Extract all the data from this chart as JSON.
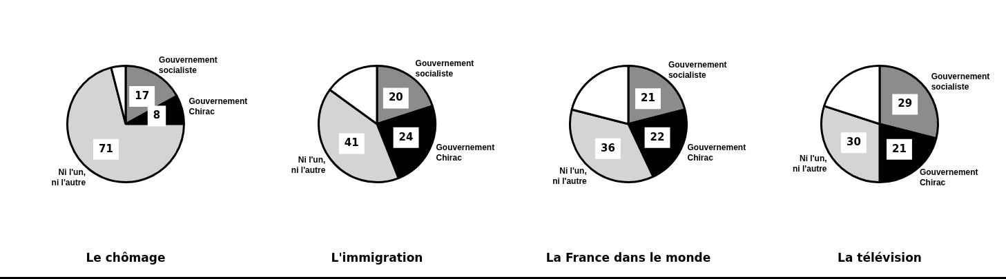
{
  "chart_data": [
    {
      "type": "pie",
      "title": "Le chômage",
      "categories": [
        "Gouvernement socialiste",
        "Gouvernement Chirac",
        "Ni l'un, ni l'autre",
        null
      ],
      "values": [
        17,
        8,
        71,
        4
      ],
      "colors": [
        "#8c8c8c",
        "#000000",
        "#d4d4d4",
        "#ffffff"
      ],
      "value_labels": [
        "17",
        "8",
        "71",
        null
      ]
    },
    {
      "type": "pie",
      "title": "L'immigration",
      "categories": [
        "Gouvernement socialiste",
        "Gouvernement Chirac",
        "Ni l'un, ni l'autre",
        null
      ],
      "values": [
        20,
        24,
        41,
        15
      ],
      "colors": [
        "#8c8c8c",
        "#000000",
        "#d4d4d4",
        "#ffffff"
      ],
      "value_labels": [
        "20",
        "24",
        "41",
        null
      ]
    },
    {
      "type": "pie",
      "title": "La France dans le monde",
      "categories": [
        "Gouvernement socialiste",
        "Gouvernement Chirac",
        "Ni l'un, ni l'autre",
        null
      ],
      "values": [
        21,
        22,
        36,
        21
      ],
      "colors": [
        "#8c8c8c",
        "#000000",
        "#d4d4d4",
        "#ffffff"
      ],
      "value_labels": [
        "21",
        "22",
        "36",
        null
      ]
    },
    {
      "type": "pie",
      "title": "La télévision",
      "categories": [
        "Gouvernement socialiste",
        "Gouvernement Chirac",
        "Ni l'un, ni l'autre",
        null
      ],
      "values": [
        29,
        21,
        30,
        20
      ],
      "colors": [
        "#8c8c8c",
        "#000000",
        "#d4d4d4",
        "#ffffff"
      ],
      "value_labels": [
        "29",
        "21",
        "30",
        null
      ]
    }
  ]
}
